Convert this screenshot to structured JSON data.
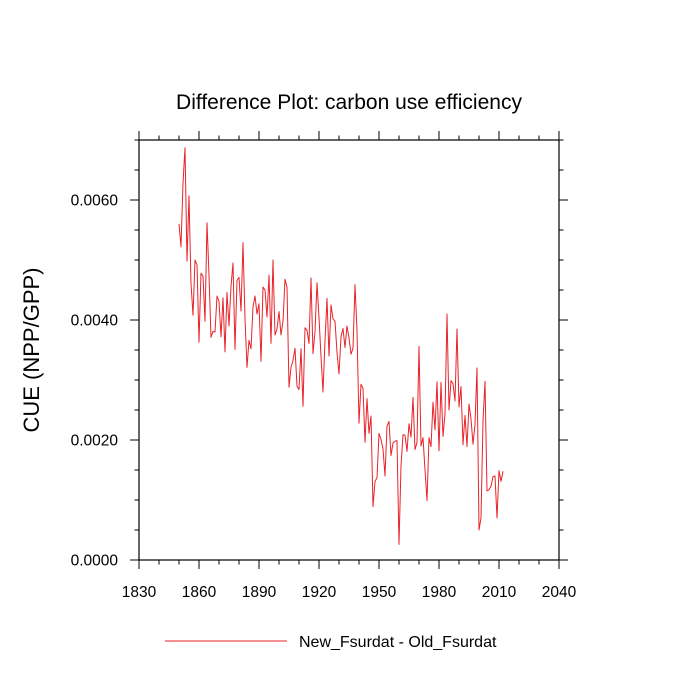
{
  "chart_data": {
    "type": "line",
    "title": "Difference Plot: carbon use efficiency",
    "xlabel": "",
    "ylabel": "CUE  (NPP/GPP)",
    "xlim": [
      1830,
      2040
    ],
    "ylim": [
      0.0,
      0.007
    ],
    "x_ticks": [
      1830,
      1860,
      1890,
      1920,
      1950,
      1980,
      2010,
      2040
    ],
    "x_tick_labels": [
      "1830",
      "1860",
      "1890",
      "1920",
      "1950",
      "1980",
      "2010",
      "2040"
    ],
    "y_ticks": [
      0.0,
      0.002,
      0.004,
      0.006
    ],
    "y_tick_labels": [
      "0.0000",
      "0.0020",
      "0.0040",
      "0.0060"
    ],
    "grid": false,
    "legend_position": "bottom",
    "series": [
      {
        "name": "New_Fsurdat - Old_Fsurdat",
        "color": "#e8232a",
        "x_start": 1850,
        "x_step": 1,
        "values": [
          0.0056,
          0.00522,
          0.00628,
          0.00687,
          0.00498,
          0.00607,
          0.00461,
          0.00408,
          0.005,
          0.00492,
          0.00363,
          0.00478,
          0.00473,
          0.00398,
          0.00562,
          0.00475,
          0.00371,
          0.00381,
          0.0038,
          0.0044,
          0.00431,
          0.00372,
          0.00437,
          0.00347,
          0.00446,
          0.0039,
          0.00456,
          0.00495,
          0.00351,
          0.00466,
          0.00471,
          0.00415,
          0.00529,
          0.00402,
          0.00321,
          0.00366,
          0.00352,
          0.00422,
          0.0044,
          0.0041,
          0.00427,
          0.00331,
          0.00455,
          0.0045,
          0.00405,
          0.00475,
          0.00361,
          0.005,
          0.00375,
          0.00385,
          0.00414,
          0.00375,
          0.00398,
          0.00468,
          0.00455,
          0.00288,
          0.00321,
          0.00333,
          0.00353,
          0.0029,
          0.00284,
          0.00352,
          0.00256,
          0.00387,
          0.00383,
          0.00361,
          0.0047,
          0.00344,
          0.0038,
          0.00462,
          0.00404,
          0.00339,
          0.0028,
          0.00365,
          0.00436,
          0.0034,
          0.00425,
          0.00402,
          0.00398,
          0.00346,
          0.0031,
          0.00372,
          0.00386,
          0.00354,
          0.0039,
          0.0037,
          0.00343,
          0.00353,
          0.00459,
          0.00382,
          0.00228,
          0.00293,
          0.00286,
          0.00196,
          0.00269,
          0.00211,
          0.0024,
          0.00089,
          0.00131,
          0.00137,
          0.00211,
          0.00201,
          0.00185,
          0.0014,
          0.00223,
          0.00231,
          0.00174,
          0.00195,
          0.00198,
          0.00199,
          0.00026,
          0.00156,
          0.00209,
          0.00208,
          0.00181,
          0.00227,
          0.00205,
          0.00271,
          0.00184,
          0.00196,
          0.00356,
          0.0019,
          0.00204,
          0.0015,
          0.00099,
          0.00204,
          0.00189,
          0.00263,
          0.00217,
          0.00297,
          0.00182,
          0.00296,
          0.00206,
          0.00244,
          0.0041,
          0.0025,
          0.00299,
          0.00294,
          0.00265,
          0.00385,
          0.00255,
          0.00289,
          0.00192,
          0.00241,
          0.00189,
          0.0026,
          0.00235,
          0.00193,
          0.00226,
          0.0032,
          0.0005,
          0.0007,
          0.00232,
          0.00298,
          0.00115,
          0.00117,
          0.00123,
          0.00139,
          0.0014,
          0.0007,
          0.00149,
          0.00131,
          0.00148
        ]
      }
    ]
  }
}
